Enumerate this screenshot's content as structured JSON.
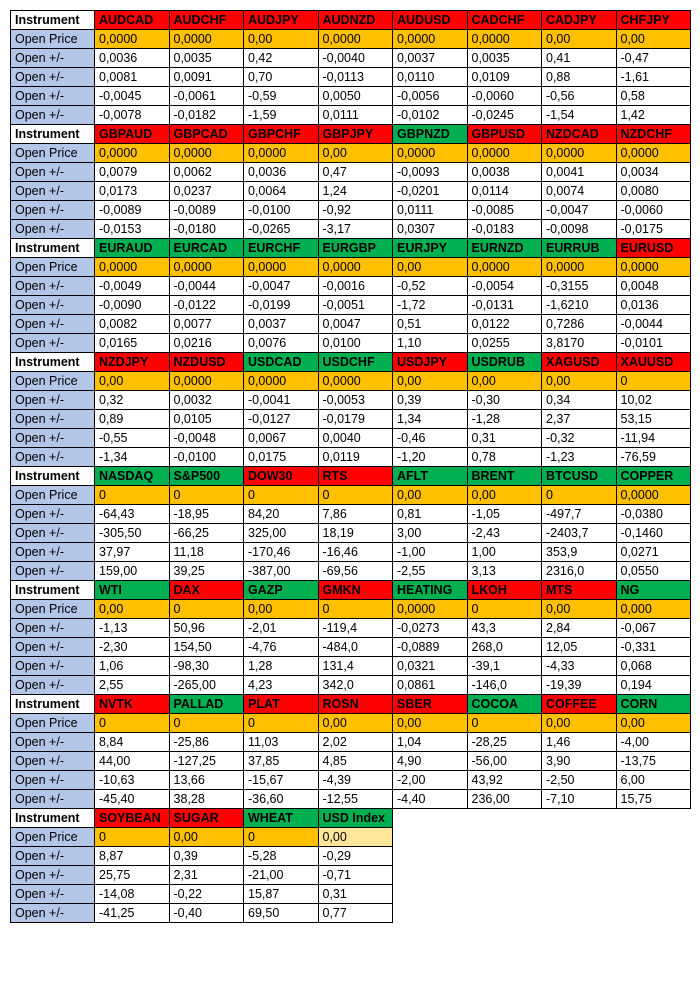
{
  "colors": {
    "instrument_label_bg": "#ffffff",
    "open_label_bg": "#b4c6e7",
    "red": "#ff0000",
    "green": "#00b050",
    "orange": "#ffc000",
    "pale_yellow": "#ffe699",
    "white": "#ffffff",
    "header_text": "#000000",
    "value_text": "#000000"
  },
  "labels": {
    "instrument": "Instrument",
    "open_price": "Open Price",
    "open_pm": "Open +/-"
  },
  "blocks": [
    {
      "headers": [
        {
          "t": "AUDCAD",
          "bg": "red"
        },
        {
          "t": "AUDCHF",
          "bg": "red"
        },
        {
          "t": "AUDJPY",
          "bg": "red"
        },
        {
          "t": "AUDNZD",
          "bg": "red"
        },
        {
          "t": "AUDUSD",
          "bg": "red"
        },
        {
          "t": "CADCHF",
          "bg": "red"
        },
        {
          "t": "CADJPY",
          "bg": "red"
        },
        {
          "t": "CHFJPY",
          "bg": "red"
        }
      ],
      "open_price_bg": [
        "orange",
        "orange",
        "orange",
        "orange",
        "orange",
        "orange",
        "orange",
        "orange"
      ],
      "open_price": [
        "0,0000",
        "0,0000",
        "0,00",
        "0,0000",
        "0,0000",
        "0,0000",
        "0,00",
        "0,00"
      ],
      "rows": [
        [
          "0,0036",
          "0,0035",
          "0,42",
          "-0,0040",
          "0,0037",
          "0,0035",
          "0,41",
          "-0,47"
        ],
        [
          "0,0081",
          "0,0091",
          "0,70",
          "-0,0113",
          "0,0110",
          "0,0109",
          "0,88",
          "-1,61"
        ],
        [
          "-0,0045",
          "-0,0061",
          "-0,59",
          "0,0050",
          "-0,0056",
          "-0,0060",
          "-0,56",
          "0,58"
        ],
        [
          "-0,0078",
          "-0,0182",
          "-1,59",
          "0,0111",
          "-0,0102",
          "-0,0245",
          "-1,54",
          "1,42"
        ]
      ]
    },
    {
      "headers": [
        {
          "t": "GBPAUD",
          "bg": "red"
        },
        {
          "t": "GBPCAD",
          "bg": "red"
        },
        {
          "t": "GBPCHF",
          "bg": "red"
        },
        {
          "t": "GBPJPY",
          "bg": "red"
        },
        {
          "t": "GBPNZD",
          "bg": "green"
        },
        {
          "t": "GBPUSD",
          "bg": "red"
        },
        {
          "t": "NZDCAD",
          "bg": "red"
        },
        {
          "t": "NZDCHF",
          "bg": "red"
        }
      ],
      "open_price_bg": [
        "orange",
        "orange",
        "orange",
        "orange",
        "orange",
        "orange",
        "orange",
        "orange"
      ],
      "open_price": [
        "0,0000",
        "0,0000",
        "0,0000",
        "0,00",
        "0,0000",
        "0,0000",
        "0,0000",
        "0,0000"
      ],
      "rows": [
        [
          "0,0079",
          "0,0062",
          "0,0036",
          "0,47",
          "-0,0093",
          "0,0038",
          "0,0041",
          "0,0034"
        ],
        [
          "0,0173",
          "0,0237",
          "0,0064",
          "1,24",
          "-0,0201",
          "0,0114",
          "0,0074",
          "0,0080"
        ],
        [
          "-0,0089",
          "-0,0089",
          "-0,0100",
          "-0,92",
          "0,0111",
          "-0,0085",
          "-0,0047",
          "-0,0060"
        ],
        [
          "-0,0153",
          "-0,0180",
          "-0,0265",
          "-3,17",
          "0,0307",
          "-0,0183",
          "-0,0098",
          "-0,0175"
        ]
      ]
    },
    {
      "headers": [
        {
          "t": "EURAUD",
          "bg": "green"
        },
        {
          "t": "EURCAD",
          "bg": "green"
        },
        {
          "t": "EURCHF",
          "bg": "green"
        },
        {
          "t": "EURGBP",
          "bg": "green"
        },
        {
          "t": "EURJPY",
          "bg": "green"
        },
        {
          "t": "EURNZD",
          "bg": "green"
        },
        {
          "t": "EURRUB",
          "bg": "green"
        },
        {
          "t": "EURUSD",
          "bg": "red"
        }
      ],
      "open_price_bg": [
        "orange",
        "orange",
        "orange",
        "orange",
        "orange",
        "orange",
        "orange",
        "orange"
      ],
      "open_price": [
        "0,0000",
        "0,0000",
        "0,0000",
        "0,0000",
        "0,00",
        "0,0000",
        "0,0000",
        "0,0000"
      ],
      "rows": [
        [
          "-0,0049",
          "-0,0044",
          "-0,0047",
          "-0,0016",
          "-0,52",
          "-0,0054",
          "-0,3155",
          "0,0048"
        ],
        [
          "-0,0090",
          "-0,0122",
          "-0,0199",
          "-0,0051",
          "-1,72",
          "-0,0131",
          "-1,6210",
          "0,0136"
        ],
        [
          "0,0082",
          "0,0077",
          "0,0037",
          "0,0047",
          "0,51",
          "0,0122",
          "0,7286",
          "-0,0044"
        ],
        [
          "0,0165",
          "0,0216",
          "0,0076",
          "0,0100",
          "1,10",
          "0,0255",
          "3,8170",
          "-0,0101"
        ]
      ]
    },
    {
      "headers": [
        {
          "t": "NZDJPY",
          "bg": "red"
        },
        {
          "t": "NZDUSD",
          "bg": "red"
        },
        {
          "t": "USDCAD",
          "bg": "green"
        },
        {
          "t": "USDCHF",
          "bg": "green"
        },
        {
          "t": "USDJPY",
          "bg": "red"
        },
        {
          "t": "USDRUB",
          "bg": "green"
        },
        {
          "t": "XAGUSD",
          "bg": "red"
        },
        {
          "t": "XAUUSD",
          "bg": "red"
        }
      ],
      "open_price_bg": [
        "orange",
        "orange",
        "orange",
        "orange",
        "orange",
        "orange",
        "orange",
        "orange"
      ],
      "open_price": [
        "0,00",
        "0,0000",
        "0,0000",
        "0,0000",
        "0,00",
        "0,00",
        "0,00",
        "0"
      ],
      "rows": [
        [
          "0,32",
          "0,0032",
          "-0,0041",
          "-0,0053",
          "0,39",
          "-0,30",
          "0,34",
          "10,02"
        ],
        [
          "0,89",
          "0,0105",
          "-0,0127",
          "-0,0179",
          "1,34",
          "-1,28",
          "2,37",
          "53,15"
        ],
        [
          "-0,55",
          "-0,0048",
          "0,0067",
          "0,0040",
          "-0,46",
          "0,31",
          "-0,32",
          "-11,94"
        ],
        [
          "-1,34",
          "-0,0100",
          "0,0175",
          "0,0119",
          "-1,20",
          "0,78",
          "-1,23",
          "-76,59"
        ]
      ]
    },
    {
      "headers": [
        {
          "t": "NASDAQ",
          "bg": "green"
        },
        {
          "t": "S&P500",
          "bg": "green"
        },
        {
          "t": "DOW30",
          "bg": "red"
        },
        {
          "t": "RTS",
          "bg": "red"
        },
        {
          "t": "AFLT",
          "bg": "green"
        },
        {
          "t": "BRENT",
          "bg": "green"
        },
        {
          "t": "BTCUSD",
          "bg": "green"
        },
        {
          "t": "COPPER",
          "bg": "green"
        }
      ],
      "open_price_bg": [
        "orange",
        "orange",
        "orange",
        "orange",
        "orange",
        "orange",
        "orange",
        "orange"
      ],
      "open_price": [
        "0",
        "0",
        "0",
        "0",
        "0,00",
        "0,00",
        "0",
        "0,0000"
      ],
      "rows": [
        [
          "-64,43",
          "-18,95",
          "84,20",
          "7,86",
          "0,81",
          "-1,05",
          "-497,7",
          "-0,0380"
        ],
        [
          "-305,50",
          "-66,25",
          "325,00",
          "18,19",
          "3,00",
          "-2,43",
          "-2403,7",
          "-0,1460"
        ],
        [
          "37,97",
          "11,18",
          "-170,46",
          "-16,46",
          "-1,00",
          "1,00",
          "353,9",
          "0,0271"
        ],
        [
          "159,00",
          "39,25",
          "-387,00",
          "-69,56",
          "-2,55",
          "3,13",
          "2316,0",
          "0,0550"
        ]
      ]
    },
    {
      "headers": [
        {
          "t": "WTI",
          "bg": "green"
        },
        {
          "t": "DAX",
          "bg": "red"
        },
        {
          "t": "GAZP",
          "bg": "green"
        },
        {
          "t": "GMKN",
          "bg": "red"
        },
        {
          "t": "HEATING",
          "bg": "green"
        },
        {
          "t": "LKOH",
          "bg": "red"
        },
        {
          "t": "MTS",
          "bg": "red"
        },
        {
          "t": "NG",
          "bg": "green"
        }
      ],
      "open_price_bg": [
        "orange",
        "orange",
        "orange",
        "orange",
        "orange",
        "orange",
        "orange",
        "orange"
      ],
      "open_price": [
        "0,00",
        "0",
        "0,00",
        "0",
        "0,0000",
        "0",
        "0,00",
        "0,000"
      ],
      "rows": [
        [
          "-1,13",
          "50,96",
          "-2,01",
          "-119,4",
          "-0,0273",
          "43,3",
          "2,84",
          "-0,067"
        ],
        [
          "-2,30",
          "154,50",
          "-4,76",
          "-484,0",
          "-0,0889",
          "268,0",
          "12,05",
          "-0,331"
        ],
        [
          "1,06",
          "-98,30",
          "1,28",
          "131,4",
          "0,0321",
          "-39,1",
          "-4,33",
          "0,068"
        ],
        [
          "2,55",
          "-265,00",
          "4,23",
          "342,0",
          "0,0861",
          "-146,0",
          "-19,39",
          "0,194"
        ]
      ]
    },
    {
      "headers": [
        {
          "t": "NVTK",
          "bg": "red"
        },
        {
          "t": "PALLAD",
          "bg": "green"
        },
        {
          "t": "PLAT",
          "bg": "red"
        },
        {
          "t": "ROSN",
          "bg": "red"
        },
        {
          "t": "SBER",
          "bg": "red"
        },
        {
          "t": "COCOA",
          "bg": "green"
        },
        {
          "t": "COFFEE",
          "bg": "red"
        },
        {
          "t": "CORN",
          "bg": "green"
        }
      ],
      "open_price_bg": [
        "orange",
        "orange",
        "orange",
        "orange",
        "orange",
        "orange",
        "orange",
        "orange"
      ],
      "open_price": [
        "0",
        "0",
        "0",
        "0,00",
        "0,00",
        "0",
        "0,00",
        "0,00"
      ],
      "rows": [
        [
          "8,84",
          "-25,86",
          "11,03",
          "2,02",
          "1,04",
          "-28,25",
          "1,46",
          "-4,00"
        ],
        [
          "44,00",
          "-127,25",
          "37,85",
          "4,85",
          "4,90",
          "-56,00",
          "3,90",
          "-13,75"
        ],
        [
          "-10,63",
          "13,66",
          "-15,67",
          "-4,39",
          "-2,00",
          "43,92",
          "-2,50",
          "6,00"
        ],
        [
          "-45,40",
          "38,28",
          "-36,60",
          "-12,55",
          "-4,40",
          "236,00",
          "-7,10",
          "15,75"
        ]
      ]
    },
    {
      "headers": [
        {
          "t": "SOYBEAN",
          "bg": "red"
        },
        {
          "t": "SUGAR",
          "bg": "red"
        },
        {
          "t": "WHEAT",
          "bg": "green"
        },
        {
          "t": "USD Index",
          "bg": "green"
        }
      ],
      "open_price_bg": [
        "orange",
        "orange",
        "orange",
        "pale_yellow"
      ],
      "open_price": [
        "0",
        "0,00",
        "0",
        "0,00"
      ],
      "rows": [
        [
          "8,87",
          "0,39",
          "-5,28",
          "-0,29"
        ],
        [
          "25,75",
          "2,31",
          "-21,00",
          "-0,71"
        ],
        [
          "-14,08",
          "-0,22",
          "15,87",
          "0,31"
        ],
        [
          "-41,25",
          "-0,40",
          "69,50",
          "0,77"
        ]
      ]
    }
  ]
}
